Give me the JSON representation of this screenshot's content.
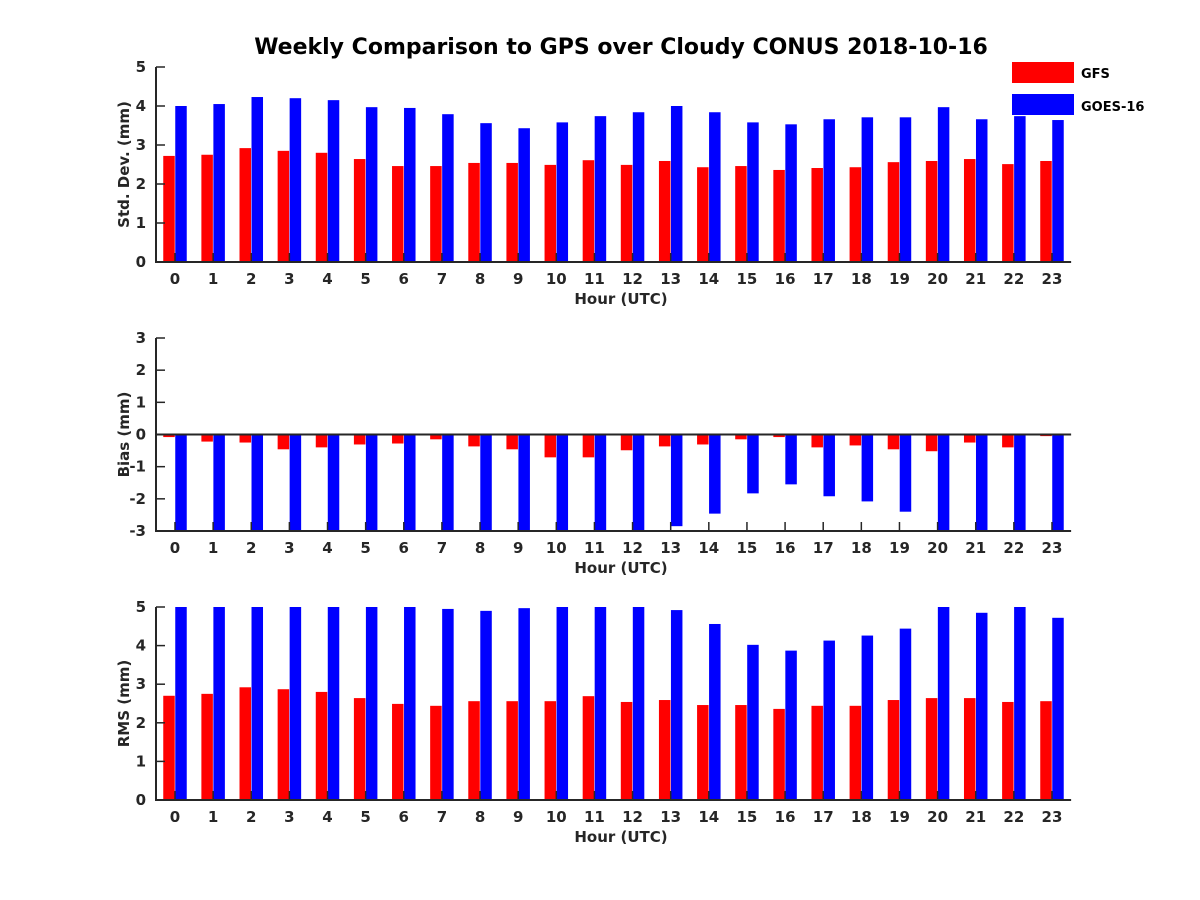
{
  "chart_data": {
    "title": "Weekly Comparison to GPS over Cloudy CONUS 2018-10-16",
    "legend": {
      "placement": "top-right",
      "entries": [
        {
          "name": "GFS",
          "color": "#ff0000"
        },
        {
          "name": "GOES-16",
          "color": "#0000ff"
        }
      ]
    },
    "panels": [
      {
        "type": "bar",
        "xlabel": "Hour (UTC)",
        "ylabel": "Std. Dev. (mm)",
        "ylim": [
          0,
          5
        ],
        "yticks": [
          0,
          1,
          2,
          3,
          4,
          5
        ],
        "grid": false,
        "categories": [
          0,
          1,
          2,
          3,
          4,
          5,
          6,
          7,
          8,
          9,
          10,
          11,
          12,
          13,
          14,
          15,
          16,
          17,
          18,
          19,
          20,
          21,
          22,
          23
        ],
        "series": [
          {
            "name": "GFS",
            "color": "#ff0000",
            "values": [
              2.72,
              2.75,
              2.92,
              2.85,
              2.8,
              2.64,
              2.46,
              2.46,
              2.54,
              2.54,
              2.49,
              2.61,
              2.49,
              2.59,
              2.43,
              2.46,
              2.36,
              2.41,
              2.43,
              2.56,
              2.59,
              2.64,
              2.51,
              2.59
            ]
          },
          {
            "name": "GOES-16",
            "color": "#0000ff",
            "values": [
              4.0,
              4.05,
              4.23,
              4.2,
              4.15,
              3.97,
              3.95,
              3.79,
              3.56,
              3.43,
              3.58,
              3.74,
              3.84,
              4.0,
              3.84,
              3.58,
              3.53,
              3.66,
              3.71,
              3.71,
              3.97,
              3.66,
              3.74,
              3.64
            ]
          }
        ]
      },
      {
        "type": "bar",
        "xlabel": "Hour (UTC)",
        "ylabel": "Bias (mm)",
        "ylim": [
          -3,
          3
        ],
        "yticks": [
          -3,
          -2,
          -1,
          0,
          1,
          2,
          3
        ],
        "grid": false,
        "zero_line": true,
        "categories": [
          0,
          1,
          2,
          3,
          4,
          5,
          6,
          7,
          8,
          9,
          10,
          11,
          12,
          13,
          14,
          15,
          16,
          17,
          18,
          19,
          20,
          21,
          22,
          23
        ],
        "series": [
          {
            "name": "GFS",
            "color": "#ff0000",
            "values": [
              -0.08,
              -0.22,
              -0.25,
              -0.46,
              -0.4,
              -0.31,
              -0.28,
              -0.15,
              -0.37,
              -0.46,
              -0.71,
              -0.71,
              -0.49,
              -0.37,
              -0.31,
              -0.15,
              -0.08,
              -0.4,
              -0.34,
              -0.46,
              -0.52,
              -0.25,
              -0.4,
              -0.05
            ]
          },
          {
            "name": "GOES-16",
            "color": "#0000ff",
            "values": [
              -3,
              -3,
              -3,
              -3,
              -3,
              -3,
              -3,
              -3,
              -3,
              -3,
              -3,
              -3,
              -3,
              -2.85,
              -2.46,
              -1.83,
              -1.55,
              -1.92,
              -2.08,
              -2.4,
              -3,
              -3,
              -3,
              -3
            ]
          }
        ]
      },
      {
        "type": "bar",
        "xlabel": "Hour (UTC)",
        "ylabel": "RMS (mm)",
        "ylim": [
          0,
          5
        ],
        "yticks": [
          0,
          1,
          2,
          3,
          4,
          5
        ],
        "grid": false,
        "categories": [
          0,
          1,
          2,
          3,
          4,
          5,
          6,
          7,
          8,
          9,
          10,
          11,
          12,
          13,
          14,
          15,
          16,
          17,
          18,
          19,
          20,
          21,
          22,
          23
        ],
        "series": [
          {
            "name": "GFS",
            "color": "#ff0000",
            "values": [
              2.7,
              2.75,
              2.92,
              2.87,
              2.8,
              2.64,
              2.49,
              2.44,
              2.56,
              2.56,
              2.56,
              2.69,
              2.54,
              2.59,
              2.46,
              2.46,
              2.36,
              2.44,
              2.44,
              2.59,
              2.64,
              2.64,
              2.54,
              2.56
            ]
          },
          {
            "name": "GOES-16",
            "color": "#0000ff",
            "values": [
              5,
              5,
              5,
              5,
              5,
              5,
              5,
              4.95,
              4.9,
              4.97,
              5,
              5,
              5,
              4.92,
              4.56,
              4.02,
              3.87,
              4.13,
              4.26,
              4.44,
              5,
              4.85,
              5,
              4.72
            ]
          }
        ]
      }
    ]
  }
}
